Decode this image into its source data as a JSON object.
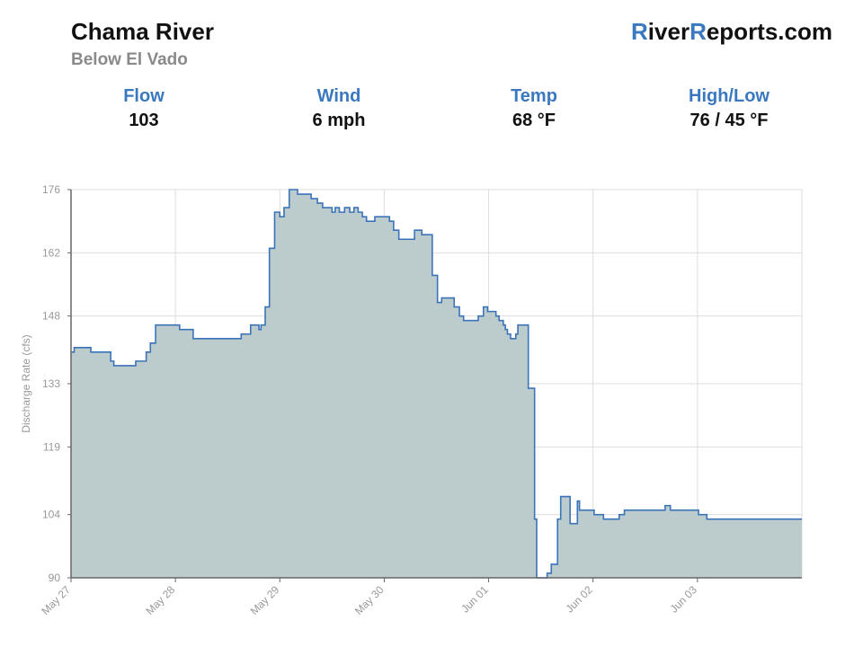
{
  "header": {
    "river_name": "Chama River",
    "location": "Below El Vado",
    "brand": {
      "part1": "R",
      "part2": "iver",
      "part3": "R",
      "part4": "eports.com"
    }
  },
  "stats": [
    {
      "label": "Flow",
      "value": "103"
    },
    {
      "label": "Wind",
      "value": "6 mph"
    },
    {
      "label": "Temp",
      "value": "68 °F"
    },
    {
      "label": "High/Low",
      "value": "76 / 45 °F"
    }
  ],
  "colors": {
    "accent": "#3a78c0",
    "line": "#3b73b9",
    "fill": "#bccbcc",
    "grid": "#dddddd"
  },
  "chart_data": {
    "type": "area",
    "ylabel": "Discharge Rate (cfs)",
    "ylim": [
      90,
      176
    ],
    "yticks": [
      90,
      104,
      119,
      133,
      148,
      162,
      176
    ],
    "xlim": [
      0,
      7
    ],
    "xtick_labels": [
      "May 27",
      "May 28",
      "May 29",
      "May 30",
      "Jun 01",
      "Jun 02",
      "Jun 03"
    ],
    "grid": true,
    "step": true,
    "x": [
      0,
      0.03,
      0.08,
      0.19,
      0.26,
      0.38,
      0.41,
      0.45,
      0.62,
      0.72,
      0.76,
      0.81,
      0.86,
      0.92,
      1.0,
      1.04,
      1.17,
      1.25,
      1.28,
      1.32,
      1.37,
      1.41,
      1.47,
      1.52,
      1.57,
      1.63,
      1.72,
      1.78,
      1.8,
      1.82,
      1.86,
      1.9,
      1.95,
      2.0,
      2.04,
      2.09,
      2.17,
      2.21,
      2.3,
      2.36,
      2.41,
      2.5,
      2.53,
      2.57,
      2.62,
      2.67,
      2.71,
      2.75,
      2.79,
      2.83,
      2.88,
      2.91,
      3.0,
      3.05,
      3.09,
      3.14,
      3.29,
      3.32,
      3.36,
      3.41,
      3.46,
      3.51,
      3.55,
      3.67,
      3.72,
      3.76,
      3.8,
      3.84,
      3.87,
      3.9,
      3.95,
      3.97,
      3.99,
      4.06,
      4.07,
      4.1,
      4.14,
      4.16,
      4.18,
      4.21,
      4.26,
      4.28,
      4.32,
      4.38,
      4.44,
      4.46,
      4.51,
      4.56,
      4.6,
      4.66,
      4.69,
      4.74,
      4.78,
      4.85,
      4.87,
      4.91,
      4.95,
      5.01,
      5.05,
      5.1,
      5.15,
      5.25,
      5.3,
      5.36,
      5.41,
      5.47,
      5.51,
      5.57,
      5.63,
      5.69,
      5.74,
      5.78,
      5.84,
      5.9,
      5.95,
      6.01,
      6.09,
      6.13,
      6.19,
      6.25,
      6.36,
      6.43,
      6.48,
      6.58,
      6.74,
      6.79,
      6.9,
      7.0
    ],
    "y": [
      140,
      141,
      141,
      140,
      140,
      138,
      137,
      137,
      138,
      140,
      142,
      146,
      146,
      146,
      146,
      145,
      143,
      143,
      143,
      143,
      143,
      143,
      143,
      143,
      143,
      144,
      146,
      146,
      145,
      146,
      150,
      163,
      171,
      170,
      172,
      176,
      175,
      175,
      174,
      173,
      172,
      171,
      172,
      171,
      172,
      171,
      172,
      171,
      170,
      169,
      169,
      170,
      170,
      169,
      167,
      165,
      167,
      167,
      166,
      166,
      157,
      151,
      152,
      150,
      148,
      147,
      147,
      147,
      147,
      148,
      150,
      150,
      149,
      149,
      148,
      147,
      146,
      145,
      144,
      143,
      144,
      146,
      146,
      132,
      103,
      90,
      90,
      91,
      93,
      103,
      108,
      108,
      102,
      107,
      105,
      105,
      105,
      104,
      104,
      103,
      103,
      104,
      105,
      105,
      105,
      105,
      105,
      105,
      105,
      106,
      105,
      105,
      105,
      105,
      105,
      104,
      103,
      103,
      103,
      103,
      103,
      103,
      103,
      103,
      103,
      103,
      103,
      103
    ]
  }
}
